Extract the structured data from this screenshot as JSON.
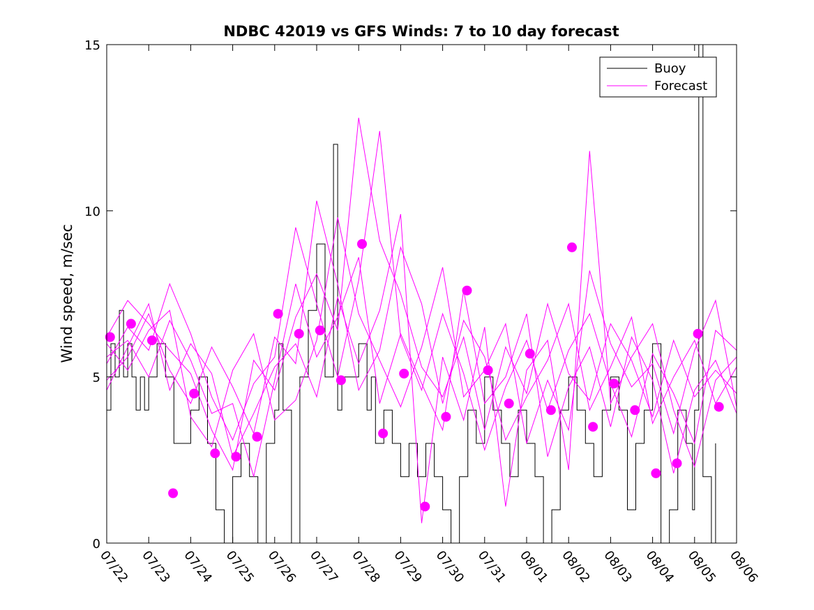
{
  "chart_data": {
    "type": "line",
    "title": "NDBC 42019 vs GFS Winds: 7 to 10 day forecast",
    "xlabel": "",
    "ylabel": "Wind speed, m/sec",
    "x_tick_labels": [
      "07/22",
      "07/23",
      "07/24",
      "07/25",
      "07/26",
      "07/27",
      "07/28",
      "07/29",
      "07/30",
      "07/31",
      "08/01",
      "08/02",
      "08/03",
      "08/04",
      "08/05",
      "08/06"
    ],
    "y_ticks": [
      0,
      5,
      10,
      15
    ],
    "xlim": [
      0,
      15
    ],
    "ylim": [
      0,
      15
    ],
    "legend": {
      "position": "top-right",
      "entries": [
        "Buoy",
        "Forecast"
      ]
    },
    "colors": {
      "buoy": "#000000",
      "forecast": "#ff00ff"
    },
    "series": [
      {
        "name": "Buoy",
        "x": [
          0.0,
          0.1,
          0.2,
          0.3,
          0.4,
          0.5,
          0.6,
          0.7,
          0.8,
          0.9,
          1.0,
          1.2,
          1.4,
          1.6,
          1.8,
          2.0,
          2.2,
          2.4,
          2.6,
          2.8,
          3.0,
          3.2,
          3.4,
          3.6,
          3.8,
          4.0,
          4.1,
          4.2,
          4.4,
          4.6,
          4.8,
          5.0,
          5.2,
          5.4,
          5.5,
          5.6,
          5.8,
          6.0,
          6.2,
          6.3,
          6.4,
          6.6,
          6.8,
          7.0,
          7.2,
          7.4,
          7.6,
          7.8,
          8.0,
          8.2,
          8.4,
          8.6,
          8.8,
          9.0,
          9.2,
          9.4,
          9.6,
          9.8,
          10.0,
          10.2,
          10.4,
          10.6,
          10.8,
          11.0,
          11.2,
          11.4,
          11.6,
          11.8,
          12.0,
          12.2,
          12.4,
          12.6,
          12.8,
          13.0,
          13.2,
          13.4,
          13.6,
          13.8,
          13.95,
          14.0,
          14.1,
          14.2,
          14.4,
          14.5
        ],
        "values": [
          4,
          6,
          5,
          7,
          5,
          6,
          5,
          4,
          5,
          4,
          5,
          6,
          5,
          3,
          3,
          4,
          5,
          3,
          1,
          0,
          2,
          3,
          2,
          0,
          3,
          4,
          6,
          4,
          0,
          5,
          7,
          9,
          5,
          12,
          4,
          5,
          5,
          6,
          4,
          5,
          3,
          4,
          3,
          2,
          3,
          2,
          3,
          2,
          1,
          0,
          2,
          4,
          3,
          5,
          4,
          3,
          2,
          4,
          3,
          2,
          0,
          1,
          4,
          5,
          4,
          3,
          2,
          4,
          5,
          4,
          1,
          3,
          4,
          6,
          0,
          1,
          4,
          3,
          1,
          4,
          15,
          2,
          0,
          3
        ]
      },
      {
        "name": "Forecast",
        "x": [
          0.0,
          0.5,
          1.0,
          1.5,
          2.0,
          2.5,
          3.0,
          3.5,
          4.0,
          4.5,
          5.0,
          5.5,
          6.0,
          6.5,
          7.0,
          7.5,
          8.0,
          8.5,
          9.0,
          9.5,
          10.0,
          10.5,
          11.0,
          11.5,
          12.0,
          12.5,
          13.0,
          13.5,
          14.0,
          14.5,
          15.0
        ],
        "values": [
          6.2,
          7.3,
          6.6,
          5.8,
          5.1,
          3.4,
          2.2,
          5.5,
          4.6,
          6.8,
          8.1,
          6.4,
          12.8,
          9.1,
          7.5,
          5.3,
          4.4,
          6.2,
          3.4,
          5.9,
          4.5,
          7.2,
          5.1,
          4.3,
          6.6,
          5.5,
          3.8,
          6.1,
          4.4,
          5.2,
          4.5
        ]
      },
      {
        "name": "Forecast",
        "x": [
          0.0,
          0.5,
          1.0,
          1.5,
          2.0,
          2.5,
          3.0,
          3.5,
          4.0,
          4.5,
          5.0,
          5.5,
          6.0,
          6.5,
          7.0,
          7.5,
          8.0,
          8.5,
          9.0,
          9.5,
          10.0,
          10.5,
          11.0,
          11.5,
          12.0,
          12.5,
          13.0,
          13.5,
          14.0,
          14.5,
          15.0
        ],
        "values": [
          5.4,
          6.5,
          5.8,
          7.8,
          6.3,
          4.4,
          3.1,
          4.8,
          5.6,
          9.5,
          7.2,
          5.0,
          7.9,
          12.4,
          6.2,
          4.6,
          6.9,
          5.1,
          2.8,
          4.7,
          6.1,
          4.0,
          5.8,
          6.9,
          4.8,
          3.2,
          5.7,
          4.5,
          3.0,
          6.4,
          5.8
        ]
      },
      {
        "name": "Forecast",
        "x": [
          0.0,
          0.5,
          1.0,
          1.5,
          2.0,
          2.5,
          3.0,
          3.5,
          4.0,
          4.5,
          5.0,
          5.5,
          6.0,
          6.5,
          7.0,
          7.5,
          8.0,
          8.5,
          9.0,
          9.5,
          10.0,
          10.5,
          11.0,
          11.5,
          12.0,
          12.5,
          13.0,
          13.5,
          14.0,
          14.5,
          15.0
        ],
        "values": [
          4.9,
          5.6,
          6.9,
          5.2,
          4.2,
          5.9,
          4.7,
          3.3,
          6.2,
          5.4,
          10.3,
          7.8,
          4.6,
          5.8,
          8.9,
          7.2,
          4.2,
          6.7,
          5.6,
          3.1,
          4.4,
          5.5,
          7.2,
          4.0,
          5.3,
          6.8,
          3.6,
          5.0,
          6.1,
          4.2,
          5.3
        ]
      },
      {
        "name": "Forecast",
        "x": [
          0.0,
          0.5,
          1.0,
          1.5,
          2.0,
          2.5,
          3.0,
          3.5,
          4.0,
          4.5,
          5.0,
          5.5,
          6.0,
          6.5,
          7.0,
          7.5,
          8.0,
          8.5,
          9.0,
          9.5,
          10.0,
          10.5,
          11.0,
          11.5,
          12.0,
          12.5,
          13.0,
          13.5,
          14.0,
          14.5,
          15.0
        ],
        "values": [
          6.0,
          5.2,
          6.4,
          7.0,
          3.8,
          2.9,
          5.2,
          6.3,
          3.7,
          4.3,
          6.1,
          9.8,
          6.9,
          5.5,
          4.1,
          5.9,
          8.3,
          4.4,
          5.2,
          6.6,
          3.0,
          4.9,
          3.4,
          8.2,
          6.0,
          4.7,
          5.4,
          3.3,
          5.8,
          7.3,
          4.1
        ]
      },
      {
        "name": "Forecast",
        "x": [
          0.0,
          0.5,
          1.0,
          1.5,
          2.0,
          2.5,
          3.0,
          3.5,
          4.0,
          4.5,
          5.0,
          5.5,
          6.0,
          6.5,
          7.0,
          7.5,
          8.0,
          8.5,
          9.0,
          9.5,
          10.0,
          10.5,
          11.0,
          11.5,
          12.0,
          12.5,
          13.0,
          13.5,
          14.0,
          14.5,
          15.0
        ],
        "values": [
          5.6,
          6.1,
          5.0,
          6.7,
          5.5,
          3.9,
          4.2,
          2.0,
          4.9,
          7.8,
          5.6,
          6.8,
          8.6,
          4.2,
          6.3,
          4.8,
          3.4,
          7.6,
          4.2,
          5.0,
          6.9,
          2.6,
          4.7,
          5.9,
          3.5,
          6.2,
          4.9,
          2.1,
          4.6,
          5.5,
          3.9
        ]
      },
      {
        "name": "Forecast",
        "x": [
          0.0,
          0.5,
          1.0,
          1.5,
          2.0,
          2.5,
          3.0,
          3.5,
          4.0,
          4.5,
          5.0,
          5.5,
          6.0,
          6.5,
          7.0,
          7.5,
          8.0,
          8.5,
          9.0,
          9.5,
          10.0,
          10.5,
          11.0,
          11.5,
          12.0,
          12.5,
          13.0,
          13.5,
          14.0,
          14.5,
          15.0
        ],
        "values": [
          4.6,
          5.9,
          7.2,
          4.6,
          6.0,
          5.1,
          2.6,
          3.9,
          5.3,
          6.0,
          4.4,
          7.4,
          5.4,
          7.0,
          9.9,
          0.6,
          5.6,
          3.7,
          6.5,
          1.1,
          5.2,
          6.1,
          2.2,
          11.8,
          4.2,
          5.6,
          6.6,
          4.0,
          2.3,
          4.9,
          5.6
        ]
      }
    ],
    "forecast_points": {
      "x": [
        0.08,
        0.58,
        1.08,
        1.58,
        2.08,
        2.58,
        3.08,
        3.58,
        4.08,
        4.58,
        5.08,
        5.58,
        6.08,
        6.58,
        7.08,
        7.58,
        8.08,
        8.58,
        9.08,
        9.58,
        10.08,
        10.58,
        11.08,
        11.58,
        12.08,
        12.58,
        13.08,
        13.58,
        14.08,
        14.58
      ],
      "values": [
        6.2,
        6.6,
        6.1,
        1.5,
        4.5,
        2.7,
        2.6,
        3.2,
        6.9,
        6.3,
        6.4,
        4.9,
        9.0,
        3.3,
        5.1,
        1.1,
        3.8,
        7.6,
        5.2,
        4.2,
        5.7,
        4.0,
        8.9,
        3.5,
        4.8,
        4.0,
        2.1,
        2.4,
        6.3,
        4.1
      ]
    }
  }
}
